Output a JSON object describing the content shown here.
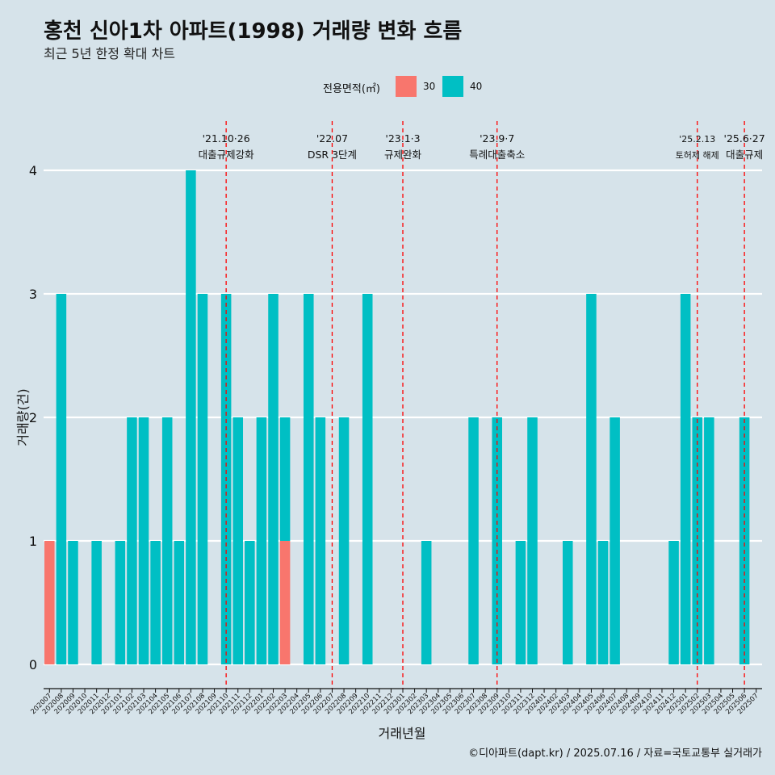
{
  "title": "홍천 신아1차 아파트(1998) 거래량 변화 흐름",
  "subtitle": "최근 5년 한정 확대 차트",
  "caption": "©디아파트(dapt.kr) / 2025.07.16 / 자료=국토교통부 실거래가",
  "legend": {
    "title": "전용면적(㎡)",
    "items": [
      {
        "label": "30",
        "color": "#f8766d"
      },
      {
        "label": "40",
        "color": "#00bfc4"
      }
    ]
  },
  "chart_data": {
    "type": "bar",
    "stacked": true,
    "xlabel": "거래년월",
    "ylabel": "거래량(건)",
    "ylim": [
      0,
      4
    ],
    "yticks": [
      0,
      1,
      2,
      3,
      4
    ],
    "grid": "horizontal",
    "legend_position": "top",
    "categories": [
      "202007",
      "202008",
      "202009",
      "202010",
      "202011",
      "202012",
      "202101",
      "202102",
      "202103",
      "202104",
      "202105",
      "202106",
      "202107",
      "202108",
      "202109",
      "202110",
      "202111",
      "202112",
      "202201",
      "202202",
      "202203",
      "202204",
      "202205",
      "202206",
      "202207",
      "202208",
      "202209",
      "202210",
      "202211",
      "202212",
      "202301",
      "202302",
      "202303",
      "202304",
      "202305",
      "202306",
      "202307",
      "202308",
      "202309",
      "202310",
      "202311",
      "202312",
      "202401",
      "202402",
      "202403",
      "202404",
      "202405",
      "202406",
      "202407",
      "202408",
      "202409",
      "202410",
      "202411",
      "202412",
      "202501",
      "202502",
      "202503",
      "202504",
      "202505",
      "202506",
      "202507"
    ],
    "series": [
      {
        "name": "30",
        "color": "#f8766d",
        "values": [
          1,
          0,
          0,
          0,
          0,
          0,
          0,
          0,
          0,
          0,
          0,
          0,
          0,
          0,
          0,
          0,
          0,
          0,
          0,
          0,
          1,
          0,
          0,
          0,
          0,
          0,
          0,
          0,
          0,
          0,
          0,
          0,
          0,
          0,
          0,
          0,
          0,
          0,
          0,
          0,
          0,
          0,
          0,
          0,
          0,
          0,
          0,
          0,
          0,
          0,
          0,
          0,
          0,
          0,
          0,
          0,
          0,
          0,
          0,
          0,
          0
        ]
      },
      {
        "name": "40",
        "color": "#00bfc4",
        "values": [
          0,
          3,
          1,
          0,
          1,
          0,
          1,
          2,
          2,
          1,
          2,
          1,
          4,
          3,
          0,
          3,
          2,
          1,
          2,
          3,
          1,
          0,
          3,
          2,
          0,
          2,
          0,
          3,
          0,
          0,
          0,
          0,
          1,
          0,
          0,
          0,
          2,
          0,
          2,
          0,
          1,
          2,
          0,
          0,
          1,
          0,
          3,
          1,
          2,
          0,
          0,
          0,
          0,
          1,
          3,
          2,
          2,
          0,
          0,
          2,
          0
        ]
      }
    ],
    "annotations": [
      {
        "x": "202110",
        "date": "'21.10·26",
        "label": "대출규제강화"
      },
      {
        "x": "202207",
        "date": "'22.07",
        "label": "DSR 3단계"
      },
      {
        "x": "202301",
        "date": "'23.1·3",
        "label": "규제완화"
      },
      {
        "x": "202309",
        "date": "'23.9·7",
        "label": "특례대출축소"
      },
      {
        "x": "202502",
        "date": "'25.2.13",
        "label": "토허제 해제"
      },
      {
        "x": "202506",
        "date": "'25.6·27",
        "label": "대출규제"
      }
    ]
  }
}
